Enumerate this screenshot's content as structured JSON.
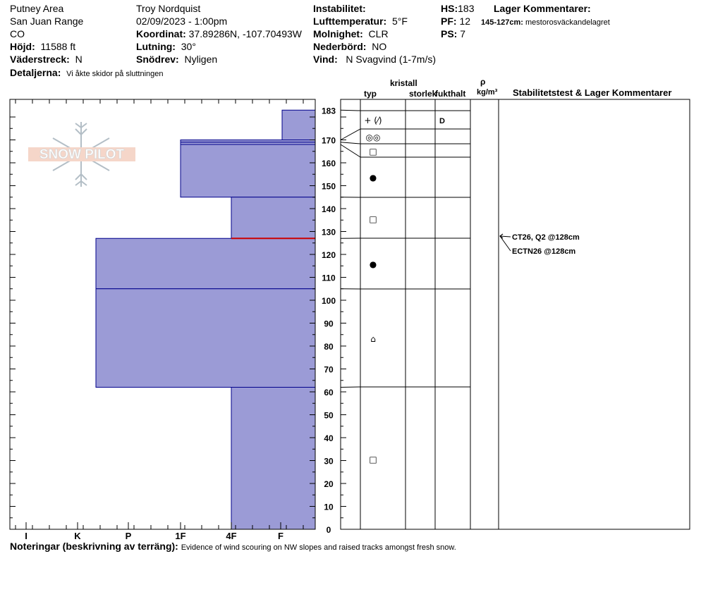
{
  "header": {
    "area": "Putney Area",
    "range": "San Juan Range",
    "state": "CO",
    "elevation_label": "Höjd:",
    "elevation": "11588 ft",
    "aspect_label": "Väderstreck:",
    "aspect": "N",
    "details_label": "Detaljerna:",
    "details": "Vi åkte skidor på sluttningen",
    "observer": "Troy  Nordquist",
    "datetime": "02/09/2023 - 1:00pm",
    "coord_label": "Koordinat:",
    "coord": "37.89286N, -107.70493W",
    "slope_label": "Lutning:",
    "slope": "30°",
    "drift_label": "Snödrev:",
    "drift": "Nyligen",
    "instability_label": "Instabilitet:",
    "air_temp_label": "Lufttemperatur:",
    "air_temp": "5°F",
    "sky_label": "Molnighet:",
    "sky": "CLR",
    "precip_label": "Nederbörd:",
    "precip": "NO",
    "wind_label": "Vind:",
    "wind": "N Svagvind (1-7m/s)",
    "hs_label": "HS:",
    "hs": "183",
    "pf_label": "PF:",
    "pf": "12",
    "ps_label": "PS:",
    "ps": "7",
    "layer_comments_label": "Lager Kommentarer:",
    "layer_comment_range": "145-127cm:",
    "layer_comment": "mestorosväckandelagret"
  },
  "logo_text": "SNOW PILOT",
  "table_headers": {
    "crystal": "kristall",
    "type": "typ",
    "size": "storlek",
    "moisture": "fukthalt",
    "rho": "ρ",
    "density_unit": "kg/m³",
    "stability": "Stabilitetstest & Lager Kommentarer"
  },
  "notes_label": "Noteringar (beskrivning av terräng):",
  "notes": "Evidence of wind scouring on NW slopes and raised tracks amongst fresh snow.",
  "colors": {
    "layer_fill": "#9b9bd6",
    "layer_edge": "#00008b",
    "weak_layer": "#cc0000"
  },
  "chart_data": {
    "type": "bar",
    "title": "",
    "xlabel": "",
    "ylabel": "",
    "hardness_ticks": [
      "I",
      "K",
      "P",
      "1F",
      "4F",
      "F"
    ],
    "ylim": [
      0,
      185
    ],
    "y_ticks": [
      0,
      10,
      20,
      30,
      40,
      50,
      60,
      70,
      80,
      90,
      100,
      110,
      120,
      130,
      140,
      150,
      160,
      170
    ],
    "top_label": "183",
    "layers": [
      {
        "top": 183,
        "bottom": 170,
        "hardness": "F",
        "grain": "+ (⁄)",
        "grain_icon": "precipitation-particles-icon",
        "moisture": "D"
      },
      {
        "top": 170,
        "bottom": 169,
        "hardness": "1F",
        "grain": "◎◎",
        "grain_icon": "surface-hoar-icon",
        "moisture": ""
      },
      {
        "top": 169,
        "bottom": 168,
        "hardness": "1F",
        "grain": "□",
        "grain_icon": "faceted-crystals-icon",
        "moisture": ""
      },
      {
        "top": 168,
        "bottom": 145,
        "hardness": "1F",
        "grain": "●",
        "grain_icon": "rounded-grains-icon",
        "moisture": ""
      },
      {
        "top": 145,
        "bottom": 127,
        "hardness": "4F",
        "grain": "□",
        "grain_icon": "faceted-crystals-icon",
        "moisture": ""
      },
      {
        "top": 127,
        "bottom": 105,
        "hardness": "P",
        "grain": "●",
        "grain_icon": "rounded-grains-icon",
        "moisture": ""
      },
      {
        "top": 105,
        "bottom": 62,
        "hardness": "P",
        "grain": "⌂",
        "grain_icon": "rounding-faceted-icon",
        "moisture": ""
      },
      {
        "top": 62,
        "bottom": 0,
        "hardness": "4F",
        "grain": "□",
        "grain_icon": "faceted-crystals-icon",
        "moisture": ""
      }
    ],
    "weak_layer": 127,
    "tests": [
      {
        "label": "CT26, Q2 @128cm",
        "depth": 128
      },
      {
        "label": "ECTN26 @128cm",
        "depth": 128
      }
    ]
  }
}
